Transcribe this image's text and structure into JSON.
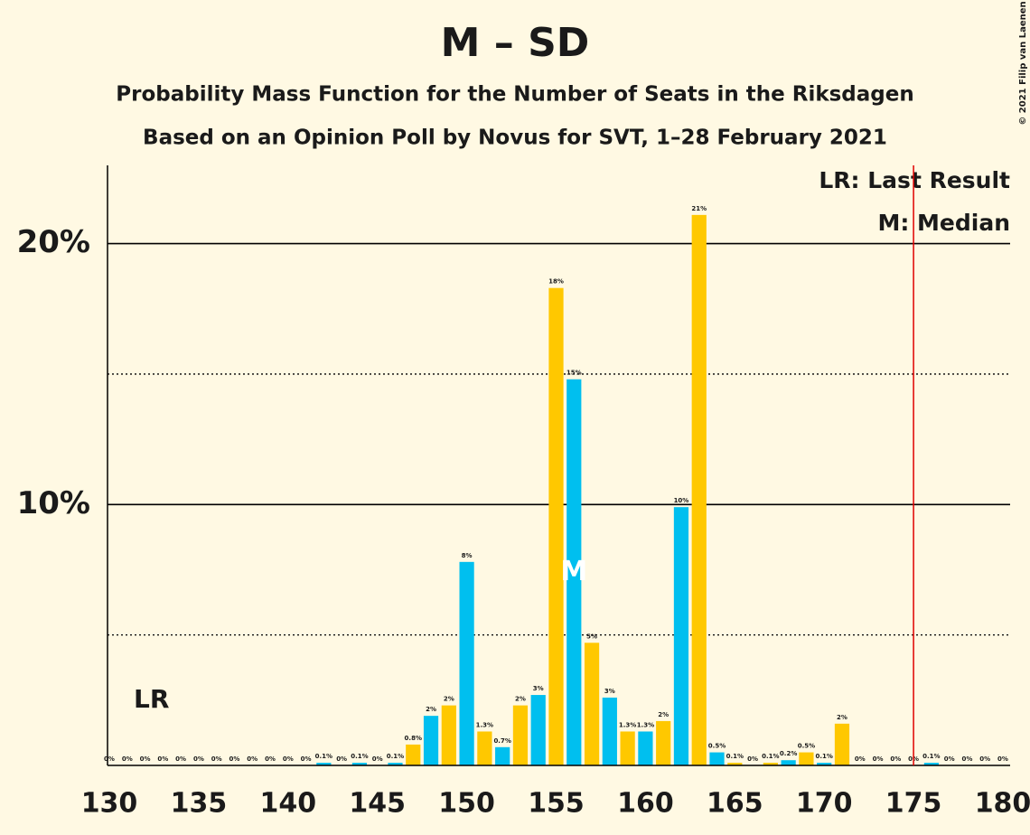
{
  "chart_data": {
    "type": "bar",
    "title": "M – SD",
    "subtitle": "Probability Mass Function for the Number of Seats in the Riksdagen",
    "subtitle2": "Based on an Opinion Poll by Novus for SVT, 1–28 February 2021",
    "copyright": "© 2021 Filip van Laenen",
    "x": [
      130,
      131,
      132,
      133,
      134,
      135,
      136,
      137,
      138,
      139,
      140,
      141,
      142,
      143,
      144,
      145,
      146,
      147,
      148,
      149,
      150,
      151,
      152,
      153,
      154,
      155,
      156,
      157,
      158,
      159,
      160,
      161,
      162,
      163,
      164,
      165,
      166,
      167,
      168,
      169,
      170,
      171,
      172,
      173,
      174,
      175,
      176,
      177,
      178,
      179,
      180
    ],
    "values": [
      0,
      0,
      0,
      0,
      0,
      0,
      0,
      0,
      0,
      0,
      0,
      0,
      0.1,
      0,
      0.1,
      0,
      0.1,
      0.8,
      1.9,
      2.3,
      7.8,
      1.3,
      0.7,
      2.3,
      2.7,
      18.3,
      14.8,
      4.7,
      2.6,
      1.3,
      1.3,
      1.7,
      9.9,
      21.1,
      0.5,
      0.1,
      0,
      0.1,
      0.2,
      0.5,
      0.1,
      1.6,
      0,
      0,
      0,
      0,
      0.1,
      0,
      0,
      0,
      0
    ],
    "value_labels": [
      "0%",
      "0%",
      "0%",
      "0%",
      "0%",
      "0%",
      "0%",
      "0%",
      "0%",
      "0%",
      "0%",
      "0%",
      "0.1%",
      "0%",
      "0.1%",
      "0%",
      "0.1%",
      "0.8%",
      "2%",
      "2%",
      "8%",
      "1.3%",
      "0.7%",
      "2%",
      "3%",
      "18%",
      "15%",
      "5%",
      "3%",
      "1.3%",
      "1.3%",
      "2%",
      "10%",
      "21%",
      "0.5%",
      "0.1%",
      "0%",
      "0.1%",
      "0.2%",
      "0.5%",
      "0.1%",
      "2%",
      "0%",
      "0%",
      "0%",
      "0%",
      "0.1%",
      "0%",
      "0%",
      "0%",
      "0%"
    ],
    "colors": [
      "#00bfef",
      "#ffc800"
    ],
    "xlim": [
      130,
      180
    ],
    "xticks": [
      130,
      135,
      140,
      145,
      150,
      155,
      160,
      165,
      170,
      175,
      180
    ],
    "ylim": [
      0,
      23
    ],
    "yticks": [
      {
        "value": 10,
        "label": "10%"
      },
      {
        "value": 20,
        "label": "20%"
      }
    ],
    "minor_yticks": [
      5,
      15
    ],
    "last_result": 175,
    "last_result_label": "LR",
    "median": 156,
    "median_label": "M",
    "legend": [
      "LR: Last Result",
      "M: Median"
    ]
  }
}
